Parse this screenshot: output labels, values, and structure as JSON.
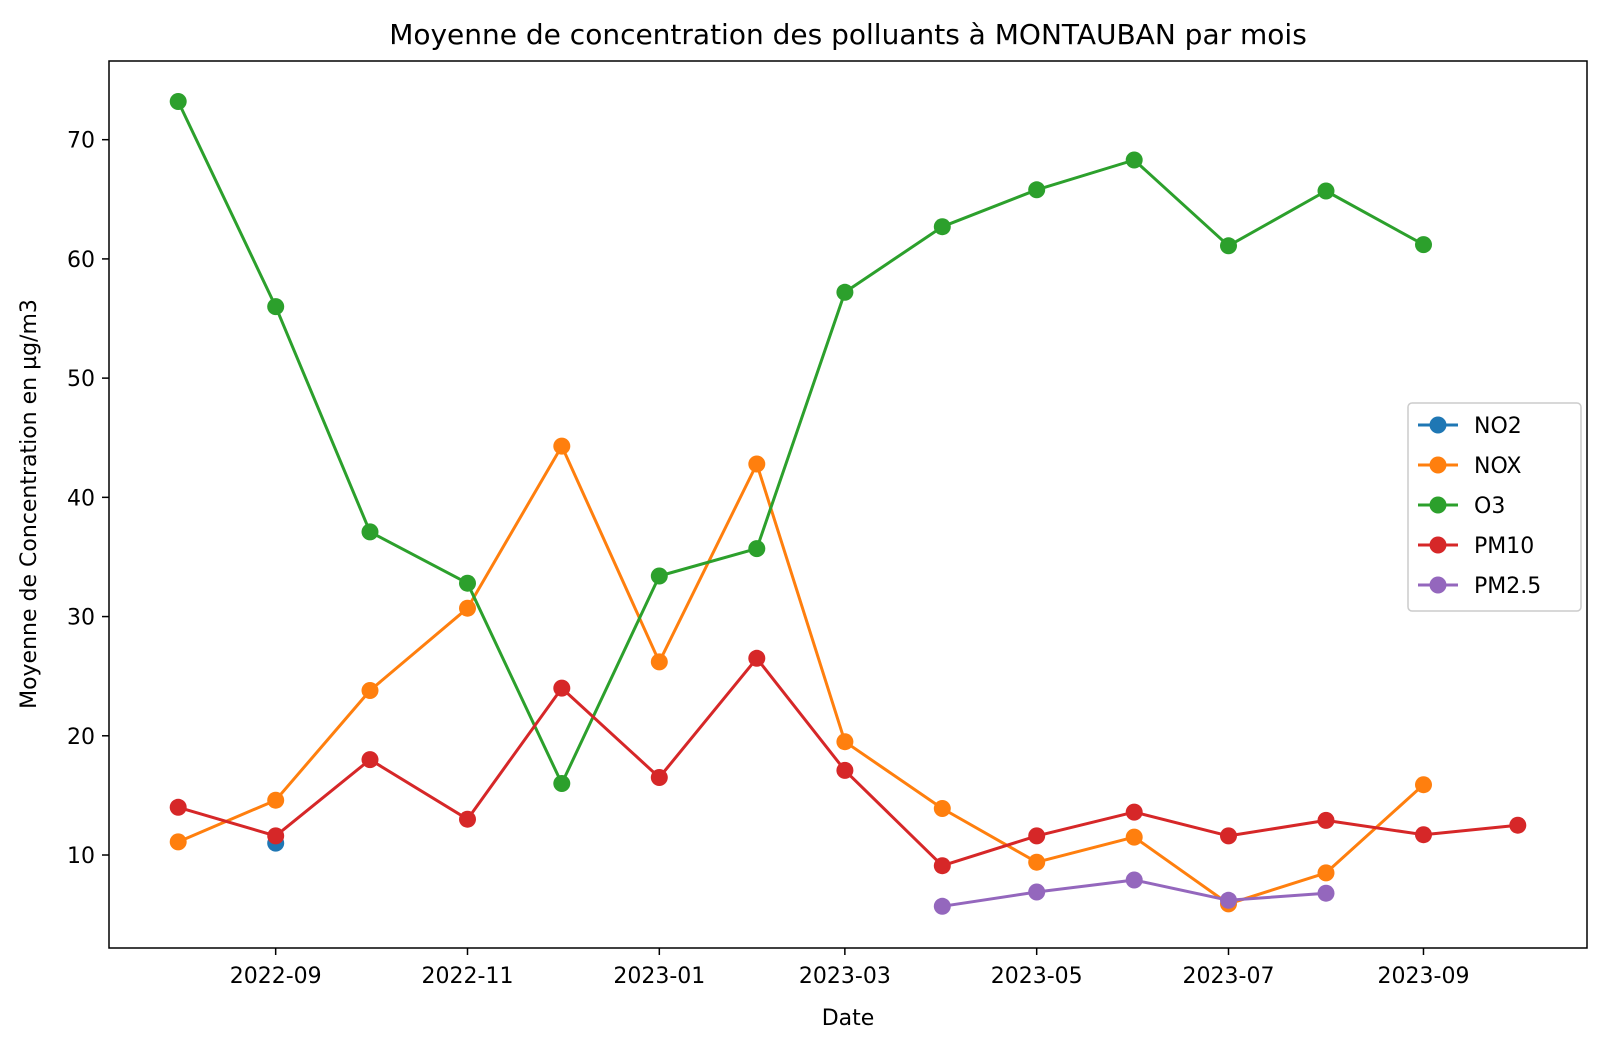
{
  "chart_data": {
    "type": "line",
    "title": "Moyenne de concentration des polluants à MONTAUBAN par mois",
    "xlabel": "Date",
    "ylabel": "Moyenne de Concentration en µg/m3",
    "x_ticks": [
      "2022-09",
      "2022-11",
      "2023-01",
      "2023-03",
      "2023-05",
      "2023-07",
      "2023-09"
    ],
    "y_ticks": [
      10,
      20,
      30,
      40,
      50,
      60,
      70
    ],
    "xlim": [
      "2022-07-10",
      "2023-10-23"
    ],
    "ylim": [
      2.2,
      76.6
    ],
    "grid": false,
    "legend_position": "center-right",
    "series": [
      {
        "name": "NO2",
        "color": "#1f77b4",
        "x": [
          "2022-09"
        ],
        "values": [
          11.0
        ]
      },
      {
        "name": "NOX",
        "color": "#ff7f0e",
        "x": [
          "2022-08",
          "2022-09",
          "2022-10",
          "2022-11",
          "2022-12",
          "2023-01",
          "2023-02",
          "2023-03",
          "2023-04",
          "2023-05",
          "2023-06",
          "2023-07",
          "2023-08",
          "2023-09"
        ],
        "values": [
          11.1,
          14.6,
          23.8,
          30.7,
          44.3,
          26.2,
          42.8,
          19.5,
          13.9,
          9.4,
          11.5,
          5.9,
          8.5,
          15.9
        ]
      },
      {
        "name": "O3",
        "color": "#2ca02c",
        "x": [
          "2022-08",
          "2022-09",
          "2022-10",
          "2022-11",
          "2022-12",
          "2023-01",
          "2023-02",
          "2023-03",
          "2023-04",
          "2023-05",
          "2023-06",
          "2023-07",
          "2023-08",
          "2023-09"
        ],
        "values": [
          73.2,
          56.0,
          37.1,
          32.8,
          16.0,
          33.4,
          35.7,
          57.2,
          62.7,
          65.8,
          68.3,
          61.1,
          65.7,
          61.2
        ]
      },
      {
        "name": "PM10",
        "color": "#d62728",
        "x": [
          "2022-08",
          "2022-09",
          "2022-10",
          "2022-11",
          "2022-12",
          "2023-01",
          "2023-02",
          "2023-03",
          "2023-04",
          "2023-05",
          "2023-06",
          "2023-07",
          "2023-08",
          "2023-09",
          "2023-10"
        ],
        "values": [
          14.0,
          11.6,
          18.0,
          13.0,
          24.0,
          16.5,
          26.5,
          17.1,
          9.1,
          11.6,
          13.6,
          11.6,
          12.9,
          11.7,
          12.5
        ]
      },
      {
        "name": "PM2.5",
        "color": "#9467bd",
        "x": [
          "2023-04",
          "2023-05",
          "2023-06",
          "2023-07",
          "2023-08"
        ],
        "values": [
          5.7,
          6.9,
          7.9,
          6.2,
          6.8
        ]
      }
    ]
  }
}
